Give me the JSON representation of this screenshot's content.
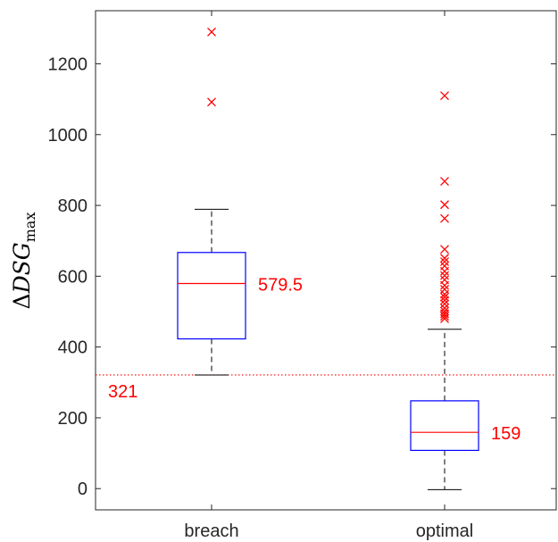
{
  "chart_data": {
    "type": "box",
    "title": "",
    "xlabel": "",
    "ylabel": {
      "delta": "Δ",
      "main": "DSG",
      "subscript": "max"
    },
    "categories": [
      "breach",
      "optimal"
    ],
    "ylim": [
      -60,
      1350
    ],
    "yticks": [
      0,
      200,
      400,
      600,
      800,
      1000,
      1200
    ],
    "grid": false,
    "reference_line": {
      "value": 321,
      "label": "321",
      "color": "#ff0000",
      "style": "dotted"
    },
    "boxes": [
      {
        "category": "breach",
        "q1": 423,
        "median": 579.5,
        "q3": 667,
        "whisker_low": 321,
        "whisker_high": 789,
        "median_label": "579.5",
        "outliers": [
          1092,
          1290
        ]
      },
      {
        "category": "optimal",
        "q1": 108,
        "median": 159,
        "q3": 248,
        "whisker_low": -3,
        "whisker_high": 450,
        "median_label": "159",
        "outliers": [
          480,
          487,
          494,
          501,
          510,
          522,
          532,
          541,
          549,
          563,
          574,
          590,
          602,
          614,
          629,
          641,
          651,
          676,
          763,
          802,
          868,
          1110
        ]
      }
    ],
    "colors": {
      "box": "#0000ff",
      "median": "#ff0000",
      "outlier": "#ff0000",
      "whisker": "#000000",
      "label": "#ff0000",
      "axis": "#262626"
    }
  }
}
